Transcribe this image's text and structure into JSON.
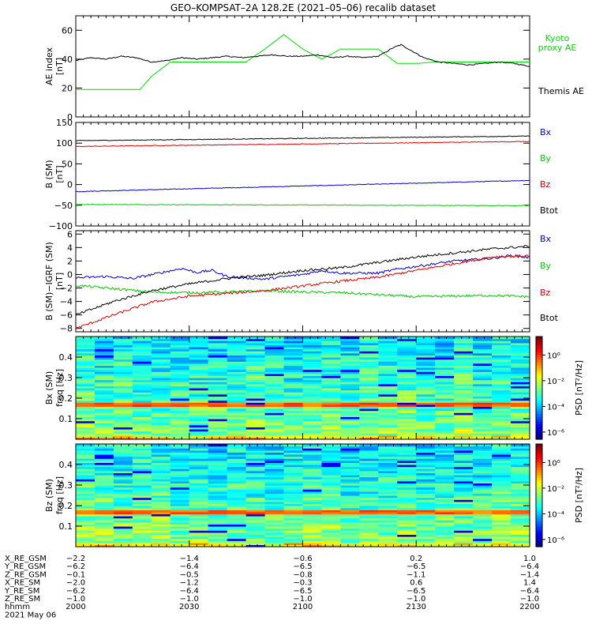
{
  "title": "GEO–KOMPSAT–2A 128.2E (2021–05–06) recalib dataset",
  "chart_data": [
    {
      "type": "line",
      "panel": "ae-index",
      "ylabel": "AE index",
      "yunit": "[nT]",
      "ylim": [
        0,
        70
      ],
      "yticks": [
        "0",
        "20",
        "40",
        "60"
      ],
      "ytick_values": [
        0,
        20,
        40,
        60
      ],
      "x_time_minutes": [
        0,
        120
      ],
      "series": [
        {
          "name": "Kyoto proxy AE",
          "label_lines": [
            "Kyoto",
            "proxy AE"
          ],
          "color": "#00dd00",
          "t": [
            0,
            5,
            10,
            17,
            20,
            25,
            30,
            38,
            42,
            45,
            50,
            55,
            60,
            65,
            68,
            70,
            73,
            75,
            80,
            85,
            90,
            95,
            100,
            105,
            110,
            120
          ],
          "values": [
            19,
            19,
            19,
            19,
            28,
            38,
            38,
            38,
            38,
            38,
            47,
            57,
            47,
            40,
            44,
            47,
            47,
            47,
            47,
            37,
            37,
            38,
            38,
            38,
            38,
            38
          ]
        },
        {
          "name": "Themis AE",
          "label_lines": [
            "Themis AE"
          ],
          "color": "#000000",
          "t": [
            0,
            4,
            8,
            12,
            16,
            20,
            24,
            28,
            32,
            36,
            40,
            44,
            48,
            52,
            56,
            60,
            64,
            68,
            72,
            76,
            80,
            84,
            86,
            88,
            92,
            96,
            100,
            104,
            108,
            112,
            116,
            120
          ],
          "values": [
            39,
            41,
            40,
            42,
            41,
            38,
            39,
            41,
            40,
            41,
            42,
            41,
            42,
            43,
            42,
            42,
            43,
            41,
            42,
            41,
            42,
            48,
            50,
            47,
            41,
            38,
            37,
            36,
            37,
            38,
            37,
            35
          ]
        }
      ]
    },
    {
      "type": "line",
      "panel": "b-sm",
      "ylabel": "B (SM)",
      "yunit": "[nT]",
      "ylim": [
        -100,
        150
      ],
      "yticks": [
        "−100",
        "−50",
        "0",
        "50",
        "100",
        "150"
      ],
      "ytick_values": [
        -100,
        -50,
        0,
        50,
        100,
        150
      ],
      "x_time_minutes": [
        0,
        120
      ],
      "series": [
        {
          "name": "Bx",
          "color": "#0000cc",
          "t": [
            0,
            120
          ],
          "values": [
            -17,
            10
          ]
        },
        {
          "name": "By",
          "color": "#00cc00",
          "t": [
            0,
            120
          ],
          "values": [
            -48,
            -51
          ]
        },
        {
          "name": "Bz",
          "color": "#dd0000",
          "t": [
            0,
            120
          ],
          "values": [
            92,
            104
          ]
        },
        {
          "name": "Btot",
          "color": "#000000",
          "t": [
            0,
            120
          ],
          "values": [
            106,
            117
          ]
        }
      ]
    },
    {
      "type": "line",
      "panel": "b-sm-minus-igrf",
      "ylabel": "B (SM)−IGRF (SM)",
      "yunit": "[nT]",
      "ylim": [
        -8.5,
        6.5
      ],
      "yticks": [
        "−8",
        "−6",
        "−4",
        "−2",
        "0",
        "2",
        "4",
        "6"
      ],
      "ytick_values": [
        -8,
        -6,
        -4,
        -2,
        0,
        2,
        4,
        6
      ],
      "x_time_minutes": [
        0,
        120
      ],
      "series": [
        {
          "name": "Bx",
          "color": "#0000cc",
          "t": [
            0,
            8,
            15,
            22,
            28,
            32,
            36,
            40,
            45,
            50,
            55,
            60,
            65,
            70,
            75,
            80,
            85,
            90,
            95,
            100,
            105,
            110,
            115,
            120
          ],
          "values": [
            -0.5,
            -0.3,
            -0.6,
            0.2,
            0.9,
            0.3,
            0.6,
            -0.3,
            -0.5,
            -0.7,
            -0.3,
            0.0,
            0.6,
            0.2,
            0.2,
            0.2,
            0.8,
            1.2,
            1.6,
            2.0,
            2.2,
            2.4,
            2.8,
            2.5
          ]
        },
        {
          "name": "By",
          "color": "#00cc00",
          "t": [
            0,
            10,
            20,
            30,
            40,
            50,
            60,
            70,
            80,
            90,
            100,
            110,
            120
          ],
          "values": [
            -1.6,
            -2.1,
            -2.6,
            -2.7,
            -2.6,
            -2.4,
            -2.6,
            -2.7,
            -3.0,
            -3.3,
            -3.2,
            -3.1,
            -3.3
          ]
        },
        {
          "name": "Bz",
          "color": "#dd0000",
          "t": [
            0,
            10,
            20,
            30,
            40,
            50,
            60,
            70,
            80,
            90,
            100,
            110,
            120
          ],
          "values": [
            -8.0,
            -6.0,
            -4.1,
            -3.2,
            -2.8,
            -2.4,
            -1.7,
            -1.0,
            -0.4,
            0.6,
            1.6,
            2.6,
            2.8
          ]
        },
        {
          "name": "Btot",
          "color": "#000000",
          "t": [
            0,
            10,
            20,
            30,
            40,
            50,
            60,
            70,
            80,
            90,
            100,
            110,
            120
          ],
          "values": [
            -6.0,
            -4.0,
            -2.4,
            -1.4,
            -0.6,
            -0.1,
            0.6,
            1.0,
            1.8,
            2.6,
            3.2,
            3.8,
            4.2
          ]
        }
      ]
    },
    {
      "type": "heatmap",
      "panel": "bx-psd",
      "ylabel": "Bx (SM)",
      "yunit": "freq [Hz]",
      "ylim": [
        0,
        0.5
      ],
      "yticks": [
        "0.1",
        "0.2",
        "0.3",
        "0.4"
      ],
      "ytick_values": [
        0.1,
        0.2,
        0.3,
        0.4
      ],
      "band_hz": [
        0.16,
        0.18
      ],
      "colorbar_label": "PSD [nT²/Hz]",
      "colorbar_ticks": [
        "10⁰",
        "10⁻²",
        "10⁻⁴",
        "10⁻⁶"
      ]
    },
    {
      "type": "heatmap",
      "panel": "bz-psd",
      "ylabel": "Bz (SM)",
      "yunit": "freq [Hz]",
      "ylim": [
        0,
        0.5
      ],
      "yticks": [
        "0.1",
        "0.2",
        "0.3",
        "0.4"
      ],
      "ytick_values": [
        0.1,
        0.2,
        0.3,
        0.4
      ],
      "band_hz": [
        0.16,
        0.18
      ],
      "colorbar_label": "PSD [nT²/Hz]",
      "colorbar_ticks": [
        "10⁰",
        "10⁻²",
        "10⁻⁴",
        "10⁻⁶"
      ]
    }
  ],
  "ephemeris": {
    "rows": [
      {
        "label": "X_RE_GSM",
        "values": [
          "−2.2",
          "−1.4",
          "−0.6",
          "0.2",
          "1.0"
        ]
      },
      {
        "label": "Y_RE_GSM",
        "values": [
          "−6.2",
          "−6.4",
          "−6.5",
          "−6.5",
          "−6.4"
        ]
      },
      {
        "label": "Z_RE_GSM",
        "values": [
          "−0.1",
          "−0.5",
          "−0.8",
          "−1.1",
          "−1.4"
        ]
      },
      {
        "label": "X_RE_SM",
        "values": [
          "−2.0",
          "−1.2",
          "−0.3",
          "0.6",
          "1.4"
        ]
      },
      {
        "label": "Y_RE_SM",
        "values": [
          "−6.2",
          "−6.4",
          "−6.5",
          "−6.5",
          "−6.4"
        ]
      },
      {
        "label": "Z_RE_SM",
        "values": [
          "−1.0",
          "−1.0",
          "−1.0",
          "−1.0",
          "−1.0"
        ]
      },
      {
        "label": "hhmm",
        "values": [
          "2000",
          "2030",
          "2100",
          "2130",
          "2200"
        ]
      }
    ],
    "date": "2021 May 06"
  }
}
